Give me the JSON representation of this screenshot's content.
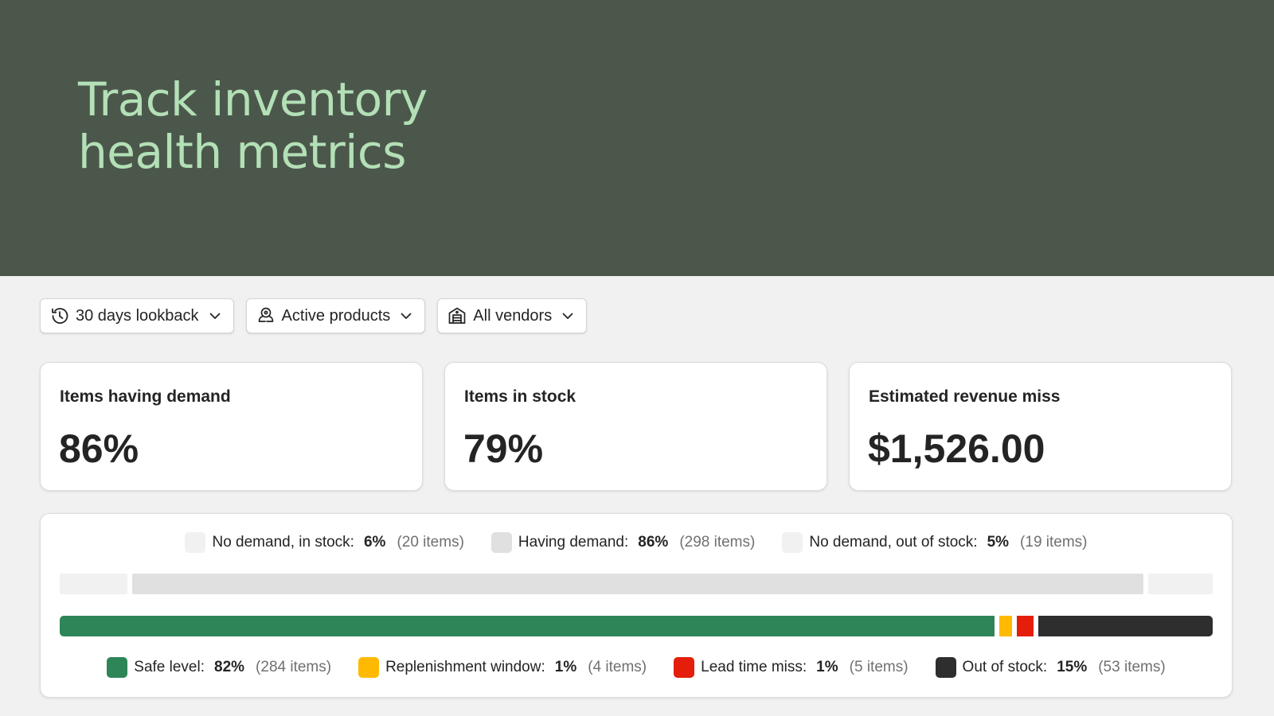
{
  "hero": {
    "title": "Track inventory\nhealth metrics"
  },
  "filters": [
    {
      "label": "30 days lookback",
      "icon": "history-icon"
    },
    {
      "label": "Active products",
      "icon": "products-icon"
    },
    {
      "label": "All vendors",
      "icon": "vendor-building-icon"
    }
  ],
  "cards": [
    {
      "title": "Items having demand",
      "value": "86%"
    },
    {
      "title": "Items in stock",
      "value": "79%"
    },
    {
      "title": "Estimated revenue miss",
      "value": "$1,526.00"
    }
  ],
  "chart_data": [
    {
      "type": "bar",
      "stacked": true,
      "orientation": "horizontal",
      "series": [
        {
          "name": "No demand, in stock:",
          "percent": "6%",
          "items": "(20 items)",
          "value": 20,
          "color": "#f1f1f1"
        },
        {
          "name": "Having demand:",
          "percent": "86%",
          "items": "(298 items)",
          "value": 298,
          "color": "#e0e0e0"
        },
        {
          "name": "No demand, out of stock:",
          "percent": "5%",
          "items": "(19 items)",
          "value": 19,
          "color": "#f1f1f1"
        }
      ]
    },
    {
      "type": "bar",
      "stacked": true,
      "orientation": "horizontal",
      "series": [
        {
          "name": "Safe level:",
          "percent": "82%",
          "items": "(284 items)",
          "value": 284,
          "color": "#2d8558"
        },
        {
          "name": "Replenishment window:",
          "percent": "1%",
          "items": "(4 items)",
          "value": 4,
          "color": "#ffb900"
        },
        {
          "name": "Lead time miss:",
          "percent": "1%",
          "items": "(5 items)",
          "value": 5,
          "color": "#e41e0a"
        },
        {
          "name": "Out of stock:",
          "percent": "15%",
          "items": "(53 items)",
          "value": 53,
          "color": "#2e2e2e"
        }
      ]
    }
  ]
}
